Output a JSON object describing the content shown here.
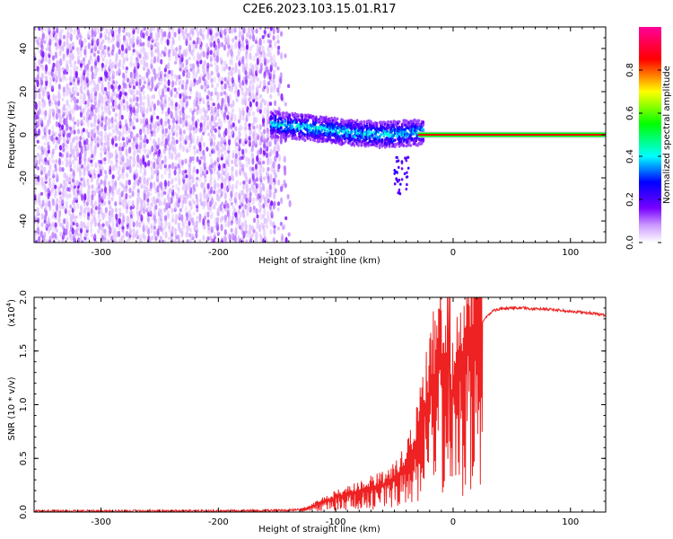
{
  "title": "C2E6.2023.103.15.01.R17",
  "chart_data": [
    {
      "type": "heatmap",
      "xlabel": "Height of straight line (km)",
      "ylabel": "Frequency (Hz)",
      "xlim": [
        -357,
        130
      ],
      "ylim": [
        -50,
        50
      ],
      "xticks": [
        -300,
        -200,
        -100,
        0,
        100
      ],
      "yticks": [
        -40,
        -20,
        0,
        20,
        40
      ],
      "colorbar": {
        "label": "Normalized spectral amplitude",
        "ticks": [
          0.0,
          0.2,
          0.4,
          0.6,
          0.8
        ],
        "range": [
          0,
          1
        ],
        "colormap": [
          "#ffffff",
          "#7700ff",
          "#0000ff",
          "#00ffff",
          "#00ff00",
          "#ffff00",
          "#ff0000",
          "#ff0099"
        ]
      },
      "regions": [
        {
          "name": "noise",
          "x_range": [
            -357,
            -140
          ],
          "freq_range": [
            -50,
            50
          ],
          "amplitude": 0.05
        },
        {
          "name": "signal-track",
          "x_range": [
            -155,
            -25
          ],
          "center_freq": [
            [
              -155,
              5
            ],
            [
              -120,
              3
            ],
            [
              -90,
              1
            ],
            [
              -60,
              0
            ],
            [
              -30,
              1
            ]
          ],
          "amplitude": 0.4
        },
        {
          "name": "carrier-line",
          "x_range": [
            -30,
            130
          ],
          "center_freq": 0,
          "amplitude": 0.85
        }
      ]
    },
    {
      "type": "line",
      "xlabel": "Height of straight line (km)",
      "ylabel": "SNR (10 * v/v)",
      "scale_label": "(x10",
      "scale_exp": "4",
      "xlim": [
        -357,
        130
      ],
      "ylim": [
        0,
        2.0
      ],
      "xticks": [
        -300,
        -200,
        -100,
        0,
        100
      ],
      "yticks": [
        0.0,
        0.5,
        1.0,
        1.5,
        2.0
      ],
      "ytick_labels": [
        "0.0",
        "0.5",
        "1.0",
        "1.5",
        "2.0"
      ],
      "color": "#ee2222",
      "series": [
        {
          "x": [
            -357,
            -300,
            -250,
            -200,
            -150,
            -130,
            -120,
            -110,
            -100,
            -90,
            -80,
            -70,
            -60,
            -50,
            -40,
            -35,
            -30,
            -25,
            -20,
            -15,
            -10,
            -5,
            0,
            5,
            10,
            15,
            20,
            25,
            30,
            35,
            40,
            50,
            60,
            70,
            80,
            90,
            100,
            110,
            120,
            130
          ],
          "y": [
            0.01,
            0.01,
            0.01,
            0.01,
            0.015,
            0.02,
            0.05,
            0.1,
            0.13,
            0.16,
            0.2,
            0.22,
            0.25,
            0.3,
            0.42,
            0.55,
            0.7,
            0.9,
            1.1,
            1.3,
            1.5,
            1.05,
            1.1,
            1.25,
            1.4,
            1.55,
            1.68,
            1.77,
            1.84,
            1.88,
            1.89,
            1.9,
            1.9,
            1.89,
            1.89,
            1.88,
            1.87,
            1.86,
            1.85,
            1.83
          ]
        }
      ]
    }
  ]
}
